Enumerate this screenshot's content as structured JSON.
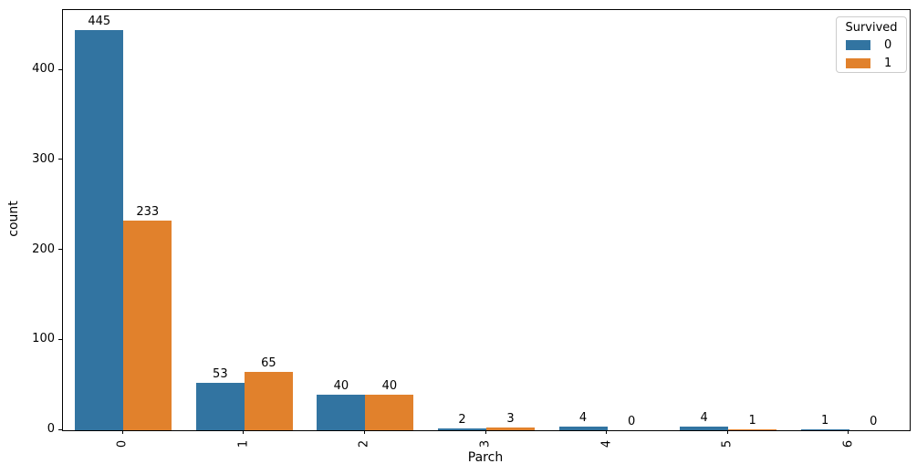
{
  "chart_data": {
    "type": "bar",
    "title": "",
    "xlabel": "Parch",
    "ylabel": "count",
    "categories": [
      "0",
      "1",
      "2",
      "3",
      "4",
      "5",
      "6"
    ],
    "series": [
      {
        "name": "0",
        "color": "#3274a1",
        "values": [
          445,
          53,
          40,
          2,
          4,
          4,
          1
        ]
      },
      {
        "name": "1",
        "color": "#e1812c",
        "values": [
          233,
          65,
          40,
          3,
          0,
          1,
          0
        ]
      }
    ],
    "bar_value_labels_shown": true,
    "legend": {
      "title": "Survived",
      "entries": [
        "0",
        "1"
      ],
      "position": "upper right"
    },
    "ylim": [
      0,
      467
    ],
    "yticks": [
      "0",
      "100",
      "200",
      "300",
      "400"
    ],
    "x_tick_rotation": 90,
    "grid": false,
    "layout": {
      "group_bar_fraction": 0.8,
      "bars_per_group": 2
    },
    "colors": {
      "spine": "#000000",
      "text": "#000000",
      "legend_border": "#cccccc",
      "background": "#ffffff"
    }
  }
}
